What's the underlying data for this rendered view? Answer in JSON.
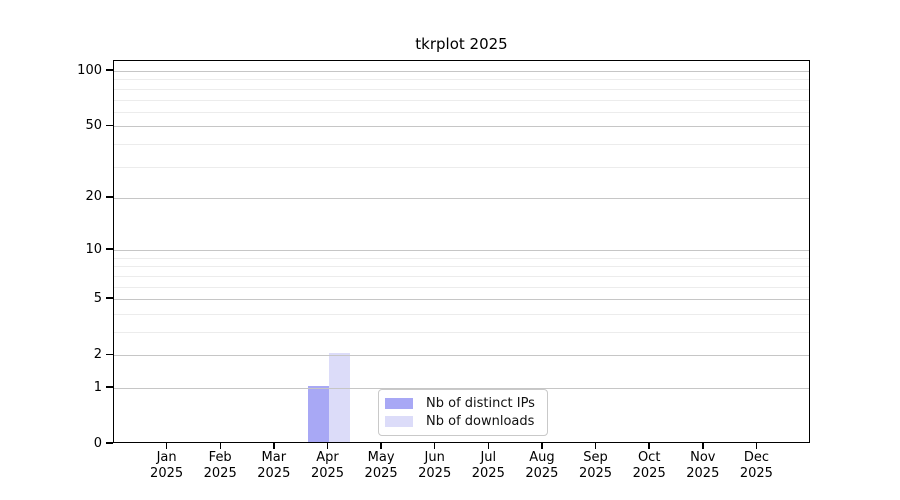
{
  "title": "tkrplot 2025",
  "chart_data": {
    "type": "bar",
    "title": "tkrplot 2025",
    "x_months": [
      "Jan",
      "Feb",
      "Mar",
      "Apr",
      "May",
      "Jun",
      "Jul",
      "Aug",
      "Sep",
      "Oct",
      "Nov",
      "Dec"
    ],
    "x_year": "2025",
    "series": [
      {
        "name": "Nb of distinct IPs",
        "color": "#a8a8f5",
        "values": [
          0,
          0,
          0,
          1,
          0,
          0,
          0,
          0,
          0,
          0,
          0,
          0
        ]
      },
      {
        "name": "Nb of downloads",
        "color": "#dcdcf9",
        "values": [
          0,
          0,
          0,
          2,
          0,
          0,
          0,
          0,
          0,
          0,
          0,
          0
        ]
      }
    ],
    "yscale": "log1p",
    "ylim": [
      0,
      113
    ],
    "yticks": [
      0,
      1,
      2,
      5,
      10,
      20,
      50,
      100
    ],
    "minor_yticks": [
      3,
      4,
      6,
      7,
      8,
      9,
      30,
      40,
      60,
      70,
      80,
      90
    ],
    "grid": true,
    "legend_position": "lower center",
    "colors": {
      "axis": "#000000",
      "major_grid": "#c6c6c6",
      "minor_grid": "#ececec",
      "text": "#000000"
    }
  }
}
